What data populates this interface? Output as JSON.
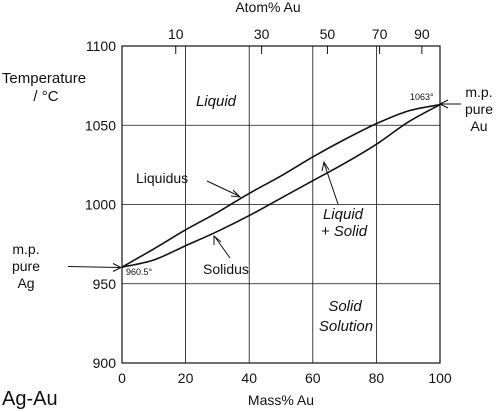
{
  "chart_data": {
    "type": "line",
    "title": "Ag-Au",
    "xlabel": "Mass% Au",
    "ylabel_line1": "Temperature",
    "ylabel_line2": "/ °C",
    "top_axis_label": "Atom% Au",
    "xlim": [
      0,
      100
    ],
    "ylim": [
      900,
      1100
    ],
    "x_ticks": [
      "0",
      "20",
      "40",
      "60",
      "80",
      "100"
    ],
    "y_ticks": [
      "900",
      "950",
      "1000",
      "1050",
      "1100"
    ],
    "top_ticks": [
      {
        "label": "10",
        "mass": 16.9
      },
      {
        "label": "30",
        "mass": 43.9
      },
      {
        "label": "50",
        "mass": 64.6
      },
      {
        "label": "70",
        "mass": 81.0
      },
      {
        "label": "90",
        "mass": 94.3
      }
    ],
    "grid": true,
    "series": [
      {
        "name": "Liquidus",
        "x": [
          0,
          10,
          20,
          30,
          40,
          50,
          60,
          70,
          80,
          90,
          100
        ],
        "y": [
          960.5,
          972,
          984,
          995,
          1007,
          1018,
          1030,
          1041,
          1051,
          1059,
          1063
        ]
      },
      {
        "name": "Solidus",
        "x": [
          0,
          10,
          20,
          30,
          40,
          50,
          60,
          70,
          80,
          90,
          100
        ],
        "y": [
          960.5,
          965,
          974,
          983,
          993,
          1004,
          1015,
          1026,
          1038,
          1052,
          1063
        ]
      }
    ],
    "annotations": {
      "melt_ag": "960.5°",
      "melt_au": "1063°",
      "mp_left": [
        "m.p.",
        "pure",
        "Ag"
      ],
      "mp_right": [
        "m.p.",
        "pure",
        "Au"
      ],
      "region_liquid": "Liquid",
      "region_two_phase": [
        "Liquid",
        "+ Solid"
      ],
      "region_solid": [
        "Solid",
        "Solution"
      ],
      "label_liquidus": "Liquidus",
      "label_solidus": "Solidus"
    },
    "colors": {
      "axis": "#111111",
      "grid": "#111111",
      "curve": "#111111"
    }
  }
}
